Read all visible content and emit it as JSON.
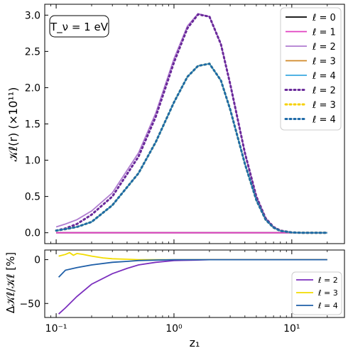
{
  "chart_data": [
    {
      "type": "line",
      "panel": "top",
      "annotation": "T_ν = 1 eV",
      "ylabel": "𝒦ℓ(r) (×10¹¹)",
      "xlabel": "",
      "xscale": "log",
      "xlim": [
        0.08,
        28
      ],
      "ylim": [
        -0.15,
        3.15
      ],
      "yticks": [
        0.0,
        0.5,
        1.0,
        1.5,
        2.0,
        2.5,
        3.0
      ],
      "ytick_labels": [
        "0.0",
        "0.5",
        "1.0",
        "1.5",
        "2.0",
        "2.5",
        "3.0"
      ],
      "grid": false,
      "legend_position": "top-right",
      "x": [
        0.1,
        0.12,
        0.15,
        0.2,
        0.3,
        0.5,
        0.7,
        1.0,
        1.3,
        1.6,
        2.0,
        2.5,
        3.0,
        4.0,
        5.0,
        6.0,
        7.0,
        8.0,
        10.0,
        12.0,
        15.0,
        20.0
      ],
      "series": [
        {
          "name": "ℓ = 0",
          "style": "solid",
          "color": "#000000",
          "values": [
            0.0,
            0.0,
            0.0,
            0.0,
            0.0,
            0.0,
            0.0,
            0.0,
            0.0,
            0.0,
            0.0,
            0.0,
            0.0,
            0.0,
            0.0,
            0.0,
            0.0,
            0.0,
            0.0,
            0.0,
            0.0,
            0.0
          ]
        },
        {
          "name": "ℓ = 1",
          "style": "solid",
          "color": "#e040c0",
          "values": [
            0.0,
            0.0,
            0.0,
            0.0,
            0.0,
            0.0,
            0.0,
            0.0,
            0.0,
            0.0,
            0.0,
            0.0,
            0.0,
            0.0,
            0.0,
            0.0,
            0.0,
            0.0,
            0.0,
            0.0,
            0.0,
            0.0
          ]
        },
        {
          "name": "ℓ = 2",
          "style": "solid",
          "color": "#b07cd0",
          "values": [
            0.08,
            0.12,
            0.18,
            0.3,
            0.55,
            1.1,
            1.65,
            2.4,
            2.85,
            3.02,
            2.98,
            2.6,
            2.05,
            1.1,
            0.5,
            0.2,
            0.08,
            0.03,
            0.005,
            0.0,
            0.0,
            0.0
          ]
        },
        {
          "name": "ℓ = 3",
          "style": "solid",
          "color": "#d08828",
          "values": [
            0.03,
            0.05,
            0.08,
            0.15,
            0.38,
            0.82,
            1.25,
            1.8,
            2.15,
            2.3,
            2.33,
            2.1,
            1.7,
            0.95,
            0.45,
            0.18,
            0.07,
            0.025,
            0.004,
            0.0,
            0.0,
            0.0
          ]
        },
        {
          "name": "ℓ = 4",
          "style": "solid",
          "color": "#3aa8e0",
          "values": [
            0.03,
            0.05,
            0.08,
            0.15,
            0.38,
            0.82,
            1.25,
            1.8,
            2.15,
            2.3,
            2.33,
            2.1,
            1.7,
            0.95,
            0.45,
            0.18,
            0.07,
            0.025,
            0.004,
            0.0,
            0.0,
            0.0
          ]
        },
        {
          "name": "ℓ = 2",
          "style": "dotted",
          "color": "#6a2a9a",
          "values": [
            0.03,
            0.06,
            0.12,
            0.25,
            0.5,
            1.05,
            1.6,
            2.35,
            2.82,
            3.01,
            2.98,
            2.6,
            2.05,
            1.1,
            0.5,
            0.2,
            0.08,
            0.03,
            0.005,
            0.0,
            0.0,
            0.0
          ]
        },
        {
          "name": "ℓ = 3",
          "style": "dotted",
          "color": "#f6d000",
          "values": [
            0.03,
            0.05,
            0.08,
            0.15,
            0.38,
            0.82,
            1.25,
            1.8,
            2.15,
            2.3,
            2.33,
            2.1,
            1.7,
            0.95,
            0.45,
            0.18,
            0.07,
            0.025,
            0.004,
            0.0,
            0.0,
            0.0
          ]
        },
        {
          "name": "ℓ = 4",
          "style": "dotted",
          "color": "#1e6aa8",
          "values": [
            0.03,
            0.05,
            0.08,
            0.15,
            0.38,
            0.82,
            1.25,
            1.8,
            2.15,
            2.3,
            2.33,
            2.1,
            1.7,
            0.95,
            0.45,
            0.18,
            0.07,
            0.025,
            0.004,
            0.0,
            0.0,
            0.0
          ]
        }
      ]
    },
    {
      "type": "line",
      "panel": "bottom",
      "xlabel": "z₁",
      "ylabel": "Δ𝒦ℓ/𝒦ℓ [%]",
      "xscale": "log",
      "xlim": [
        0.08,
        28
      ],
      "ylim": [
        -66,
        11
      ],
      "xticks": [
        0.1,
        1,
        10
      ],
      "xtick_labels": [
        "10⁻¹",
        "10⁰",
        "10¹"
      ],
      "yticks": [
        0,
        -50
      ],
      "ytick_labels": [
        "0",
        "−50"
      ],
      "grid": false,
      "legend_position": "bottom-right",
      "series": [
        {
          "name": "ℓ = 2",
          "color": "#7b2fbe",
          "x": [
            0.105,
            0.12,
            0.15,
            0.2,
            0.3,
            0.4,
            0.5,
            0.7,
            1.0,
            1.5,
            2.0,
            5.0,
            10.0,
            20.0
          ],
          "values": [
            -62,
            -55,
            -42,
            -28,
            -16,
            -10,
            -6,
            -3,
            -1,
            -0.5,
            0,
            0,
            0,
            0
          ]
        },
        {
          "name": "ℓ = 3",
          "color": "#f2dc00",
          "x": [
            0.105,
            0.12,
            0.13,
            0.14,
            0.15,
            0.17,
            0.2,
            0.25,
            0.3,
            0.4,
            0.5,
            1.0,
            2.0,
            20.0
          ],
          "values": [
            4,
            6,
            8,
            5,
            7,
            6,
            4,
            2,
            1,
            0.5,
            0,
            0,
            0,
            0
          ]
        },
        {
          "name": "ℓ = 4",
          "color": "#1f5fa8",
          "x": [
            0.105,
            0.12,
            0.15,
            0.2,
            0.3,
            0.4,
            0.5,
            0.7,
            1.0,
            2.0,
            20.0
          ],
          "values": [
            -20,
            -12,
            -9,
            -6,
            -3,
            -2,
            -1,
            -0.5,
            0,
            0,
            0
          ]
        }
      ]
    }
  ]
}
